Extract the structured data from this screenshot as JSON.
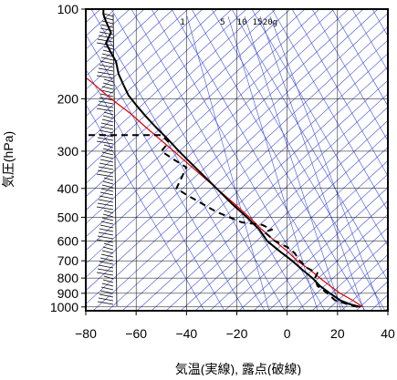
{
  "chart_data": {
    "type": "line",
    "xlabel": "気温(実線), 露点(破線)",
    "ylabel": "気圧(hPa)",
    "xlim": [
      -80,
      40
    ],
    "ylim_hpa": [
      100,
      1030
    ],
    "y_scale": "log",
    "x_ticks": [
      -80,
      -60,
      -40,
      -20,
      0,
      20,
      40
    ],
    "y_ticks": [
      100,
      200,
      300,
      400,
      500,
      600,
      700,
      800,
      900,
      1000
    ],
    "grid": true,
    "mixing_ratio_labels": [
      "1",
      "5",
      "10",
      "15",
      "20g"
    ],
    "colors": {
      "temperature": "#000000",
      "dewpoint": "#000000",
      "parcel": "#e00000",
      "background_lines": "#4050d8",
      "wind_barbs": "#000000"
    },
    "series": [
      {
        "id": "temperature",
        "style": "solid",
        "points": [
          [
            29,
            1000
          ],
          [
            25,
            980
          ],
          [
            21,
            950
          ],
          [
            17,
            900
          ],
          [
            13,
            850
          ],
          [
            10,
            800
          ],
          [
            6,
            750
          ],
          [
            2,
            700
          ],
          [
            -3,
            650
          ],
          [
            -8,
            600
          ],
          [
            -11,
            550
          ],
          [
            -16,
            500
          ],
          [
            -22,
            450
          ],
          [
            -28,
            400
          ],
          [
            -35,
            350
          ],
          [
            -43,
            300
          ],
          [
            -48,
            270
          ],
          [
            -52,
            250
          ],
          [
            -56,
            230
          ],
          [
            -60,
            210
          ],
          [
            -63,
            195
          ],
          [
            -65,
            180
          ],
          [
            -67,
            165
          ],
          [
            -68,
            150
          ],
          [
            -70,
            140
          ],
          [
            -72,
            130
          ],
          [
            -70,
            120
          ],
          [
            -72,
            110
          ],
          [
            -73,
            104
          ],
          [
            -73,
            100
          ]
        ]
      },
      {
        "id": "dewpoint",
        "style": "dashed",
        "points": [
          [
            28,
            1000
          ],
          [
            24,
            980
          ],
          [
            19,
            950
          ],
          [
            16,
            900
          ],
          [
            12,
            850
          ],
          [
            11,
            800
          ],
          [
            12,
            770
          ],
          [
            8,
            740
          ],
          [
            5,
            700
          ],
          [
            3,
            660
          ],
          [
            0,
            630
          ],
          [
            -5,
            600
          ],
          [
            -9,
            560
          ],
          [
            -6,
            550
          ],
          [
            -10,
            530
          ],
          [
            -18,
            520
          ],
          [
            -28,
            480
          ],
          [
            -40,
            420
          ],
          [
            -44,
            400
          ],
          [
            -40,
            340
          ],
          [
            -45,
            320
          ],
          [
            -50,
            300
          ],
          [
            -47,
            280
          ],
          [
            -50,
            265
          ],
          [
            -65,
            265
          ],
          [
            -82,
            265
          ]
        ]
      },
      {
        "id": "parcel",
        "style": "solid",
        "points": [
          [
            30,
            1000
          ],
          [
            26,
            950
          ],
          [
            21,
            900
          ],
          [
            17,
            850
          ],
          [
            13,
            800
          ],
          [
            9,
            750
          ],
          [
            4,
            700
          ],
          [
            0,
            650
          ],
          [
            -5,
            600
          ],
          [
            -10,
            550
          ],
          [
            -15,
            500
          ],
          [
            -21,
            450
          ],
          [
            -28,
            400
          ],
          [
            -36,
            350
          ],
          [
            -45,
            300
          ],
          [
            -56,
            250
          ],
          [
            -62,
            225
          ],
          [
            -70,
            200
          ],
          [
            -78,
            175
          ],
          [
            -82,
            165
          ]
        ]
      }
    ]
  }
}
